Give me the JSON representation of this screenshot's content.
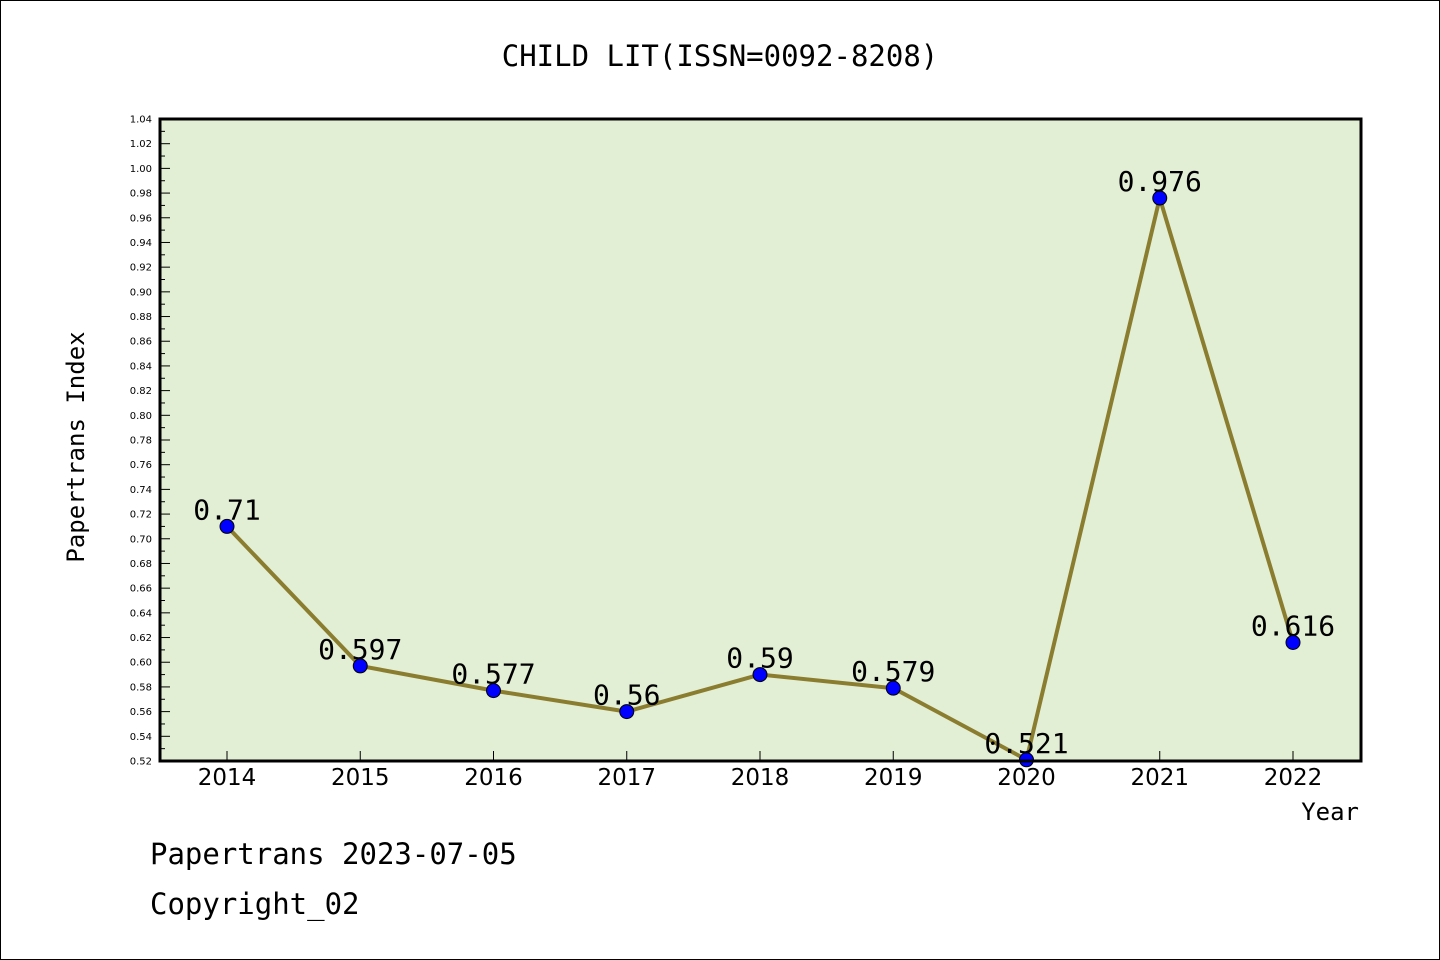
{
  "chart_data": {
    "type": "line",
    "title": "CHILD LIT(ISSN=0092-8208)",
    "xlabel": "Year",
    "ylabel": "Papertrans Index",
    "categories": [
      "2014",
      "2015",
      "2016",
      "2017",
      "2018",
      "2019",
      "2020",
      "2021",
      "2022"
    ],
    "values": [
      0.71,
      0.597,
      0.577,
      0.56,
      0.59,
      0.579,
      0.521,
      0.976,
      0.616
    ],
    "value_labels": [
      "0.71",
      "0.597",
      "0.577",
      "0.56",
      "0.59",
      "0.579",
      "0.521",
      "0.976",
      "0.616"
    ],
    "ylim": [
      0.52,
      1.04
    ],
    "ytick_step": 0.02,
    "grid": false,
    "colors": {
      "plot_background": "#e2efd5",
      "line": "#8b7d30",
      "marker": "#0000ff",
      "axis": "#000000"
    }
  },
  "footer": {
    "line1": "Papertrans 2023-07-05",
    "line2": "Copyright_02"
  }
}
